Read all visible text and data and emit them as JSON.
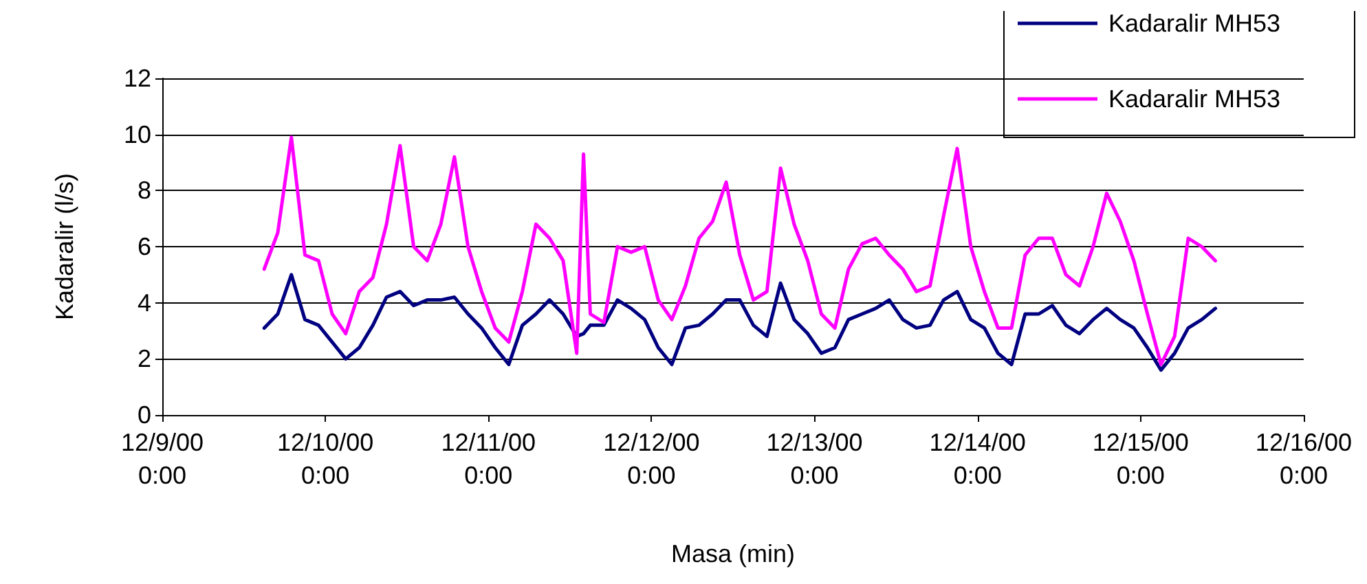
{
  "chart_data": {
    "type": "line",
    "xlabel": "Masa (min)",
    "ylabel": "Kadaralir (l/s)",
    "x": [
      "2000-12-09T15:00",
      "2000-12-09T17:00",
      "2000-12-09T19:00",
      "2000-12-09T21:00",
      "2000-12-09T23:00",
      "2000-12-10T01:00",
      "2000-12-10T03:00",
      "2000-12-10T05:00",
      "2000-12-10T07:00",
      "2000-12-10T09:00",
      "2000-12-10T11:00",
      "2000-12-10T13:00",
      "2000-12-10T15:00",
      "2000-12-10T17:00",
      "2000-12-10T19:00",
      "2000-12-10T21:00",
      "2000-12-10T23:00",
      "2000-12-11T01:00",
      "2000-12-11T03:00",
      "2000-12-11T05:00",
      "2000-12-11T07:00",
      "2000-12-11T09:00",
      "2000-12-11T11:00",
      "2000-12-11T13:00",
      "2000-12-11T14:00",
      "2000-12-11T15:00",
      "2000-12-11T17:00",
      "2000-12-11T19:00",
      "2000-12-11T21:00",
      "2000-12-11T23:00",
      "2000-12-12T01:00",
      "2000-12-12T03:00",
      "2000-12-12T05:00",
      "2000-12-12T07:00",
      "2000-12-12T09:00",
      "2000-12-12T11:00",
      "2000-12-12T13:00",
      "2000-12-12T15:00",
      "2000-12-12T17:00",
      "2000-12-12T19:00",
      "2000-12-12T21:00",
      "2000-12-12T23:00",
      "2000-12-13T01:00",
      "2000-12-13T03:00",
      "2000-12-13T05:00",
      "2000-12-13T07:00",
      "2000-12-13T09:00",
      "2000-12-13T11:00",
      "2000-12-13T13:00",
      "2000-12-13T15:00",
      "2000-12-13T17:00",
      "2000-12-13T19:00",
      "2000-12-13T21:00",
      "2000-12-13T23:00",
      "2000-12-14T01:00",
      "2000-12-14T03:00",
      "2000-12-14T05:00",
      "2000-12-14T07:00",
      "2000-12-14T09:00",
      "2000-12-14T11:00",
      "2000-12-14T13:00",
      "2000-12-14T15:00",
      "2000-12-14T17:00",
      "2000-12-14T19:00",
      "2000-12-14T21:00",
      "2000-12-14T23:00",
      "2000-12-15T01:00",
      "2000-12-15T03:00",
      "2000-12-15T05:00",
      "2000-12-15T07:00",
      "2000-12-15T09:00",
      "2000-12-15T11:00"
    ],
    "series": [
      {
        "name": "Kadaralir MH53",
        "color": "#000080",
        "values": [
          3.1,
          3.6,
          5.0,
          3.4,
          3.2,
          2.6,
          2.0,
          2.4,
          3.2,
          4.2,
          4.4,
          3.9,
          4.1,
          4.1,
          4.2,
          3.6,
          3.1,
          2.4,
          1.8,
          3.2,
          3.6,
          4.1,
          3.6,
          2.8,
          2.9,
          3.2,
          3.2,
          4.1,
          3.8,
          3.4,
          2.4,
          1.8,
          3.1,
          3.2,
          3.6,
          4.1,
          4.1,
          3.2,
          2.8,
          4.7,
          3.4,
          2.9,
          2.2,
          2.4,
          3.4,
          3.6,
          3.8,
          4.1,
          3.4,
          3.1,
          3.2,
          4.1,
          4.4,
          3.4,
          3.1,
          2.2,
          1.8,
          3.6,
          3.6,
          3.9,
          3.2,
          2.9,
          3.4,
          3.8,
          3.4,
          3.1,
          2.4,
          1.6,
          2.2,
          3.1,
          3.4,
          3.8
        ]
      },
      {
        "name": "Kadaralir MH53",
        "color": "#ff00ff",
        "values": [
          5.2,
          6.5,
          9.9,
          5.7,
          5.5,
          3.6,
          2.9,
          4.4,
          4.9,
          6.8,
          9.6,
          6.0,
          5.5,
          6.8,
          9.2,
          6.0,
          4.4,
          3.1,
          2.6,
          4.4,
          6.8,
          6.3,
          5.5,
          2.2,
          9.3,
          3.6,
          3.3,
          6.0,
          5.8,
          6.0,
          4.1,
          3.4,
          4.6,
          6.3,
          6.9,
          8.3,
          5.7,
          4.1,
          4.4,
          8.8,
          6.8,
          5.5,
          3.6,
          3.1,
          5.2,
          6.1,
          6.3,
          5.7,
          5.2,
          4.4,
          4.6,
          7.1,
          9.5,
          6.0,
          4.4,
          3.1,
          3.1,
          5.7,
          6.3,
          6.3,
          5.0,
          4.6,
          6.0,
          7.9,
          6.9,
          5.5,
          3.6,
          1.8,
          2.8,
          6.3,
          6.0,
          5.5
        ]
      }
    ],
    "xlim": [
      "2000-12-09T00:00",
      "2000-12-16T00:00"
    ],
    "xticks": [
      {
        "value": "2000-12-09T00:00",
        "label": "12/9/00 0:00"
      },
      {
        "value": "2000-12-10T00:00",
        "label": "12/10/00 0:00"
      },
      {
        "value": "2000-12-11T00:00",
        "label": "12/11/00 0:00"
      },
      {
        "value": "2000-12-12T00:00",
        "label": "12/12/00 0:00"
      },
      {
        "value": "2000-12-13T00:00",
        "label": "12/13/00 0:00"
      },
      {
        "value": "2000-12-14T00:00",
        "label": "12/14/00 0:00"
      },
      {
        "value": "2000-12-15T00:00",
        "label": "12/15/00 0:00"
      },
      {
        "value": "2000-12-16T00:00",
        "label": "12/16/00 0:00"
      }
    ],
    "ylim": [
      0,
      12
    ],
    "yticks": [
      0,
      2,
      4,
      6,
      8,
      10,
      12
    ],
    "grid": "y",
    "legend": "top right",
    "marker": "none",
    "line_style": "solid"
  }
}
